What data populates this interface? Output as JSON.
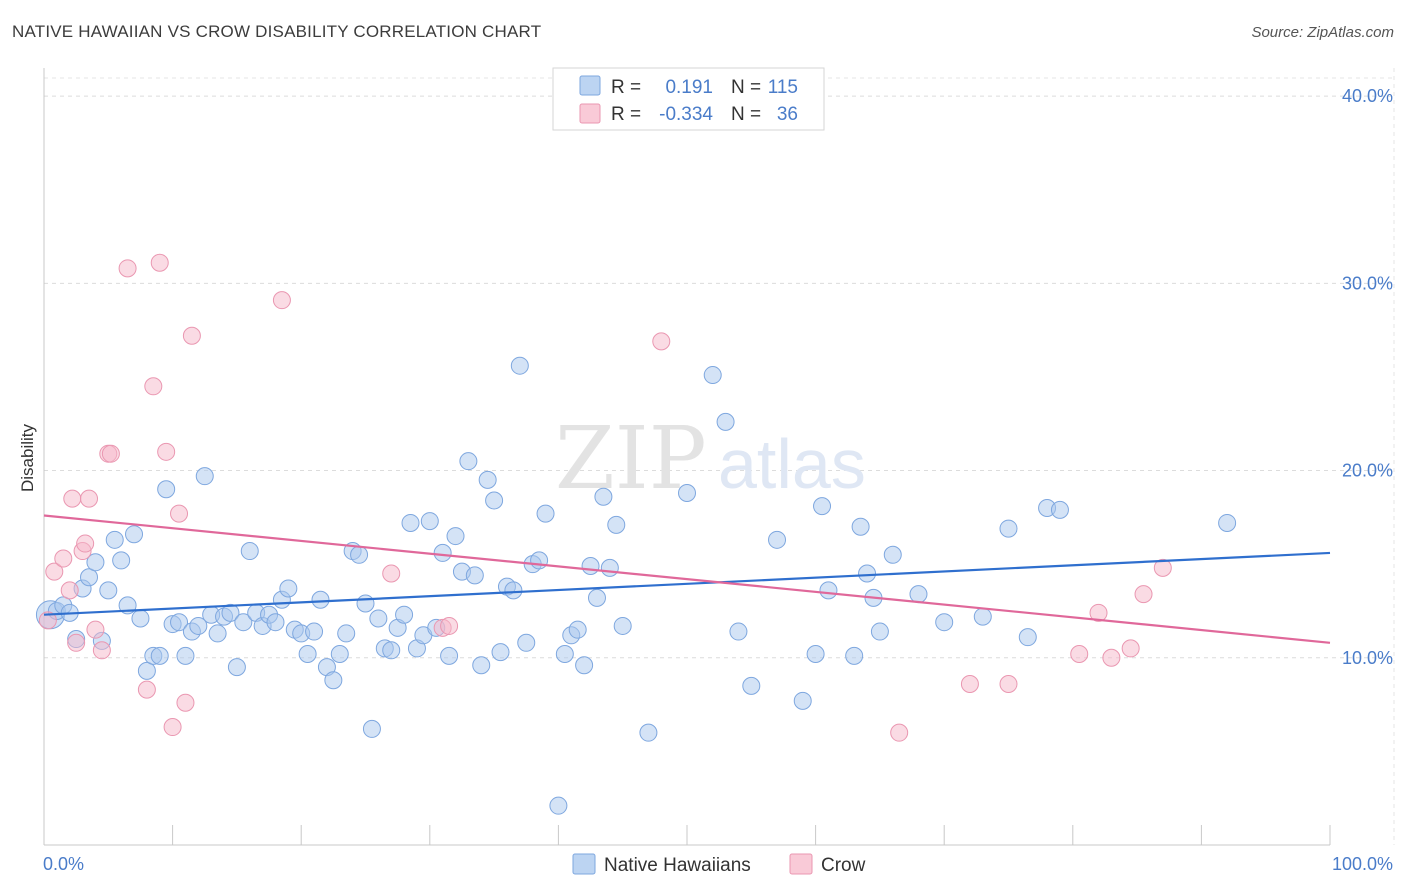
{
  "title": "NATIVE HAWAIIAN VS CROW DISABILITY CORRELATION CHART",
  "source": "Source: ZipAtlas.com",
  "watermark": {
    "part1": "ZIP",
    "part2": "atlas"
  },
  "colors": {
    "blue": "#a9c8ee",
    "blue_line": "#2f6fce",
    "pink": "#f5b7c9",
    "pink_line": "#e0689a",
    "tick_text": "#4a7cc9"
  },
  "stats_box": {
    "rows": [
      {
        "r_label": "R =",
        "r_value": "0.191",
        "n_label": "N =",
        "n_value": "115"
      },
      {
        "r_label": "R =",
        "r_value": "-0.334",
        "n_label": "N =",
        "n_value": "36"
      }
    ]
  },
  "chart_data": {
    "type": "scatter",
    "title": "NATIVE HAWAIIAN VS CROW DISABILITY CORRELATION CHART",
    "xlabel": "",
    "ylabel": "Disability",
    "xlim": [
      0,
      100
    ],
    "ylim": [
      0,
      41.5
    ],
    "x_tick_labels": [
      "0.0%",
      "100.0%"
    ],
    "y_ticks": [
      10,
      20,
      30,
      40
    ],
    "y_tick_labels": [
      "10.0%",
      "20.0%",
      "30.0%",
      "40.0%"
    ],
    "grid": true,
    "legend_position": "bottom",
    "series": [
      {
        "name": "Native Hawaiians",
        "trend": [
          [
            0,
            12.3
          ],
          [
            100,
            15.6
          ]
        ],
        "points": [
          [
            0.5,
            12.3
          ],
          [
            1,
            12.5
          ],
          [
            1.5,
            12.8
          ],
          [
            2,
            12.4
          ],
          [
            2.5,
            11
          ],
          [
            3,
            13.7
          ],
          [
            3.5,
            14.3
          ],
          [
            4,
            15.1
          ],
          [
            4.5,
            10.9
          ],
          [
            5,
            13.6
          ],
          [
            5.5,
            16.3
          ],
          [
            6,
            15.2
          ],
          [
            6.5,
            12.8
          ],
          [
            7,
            16.6
          ],
          [
            7.5,
            12.1
          ],
          [
            8,
            9.3
          ],
          [
            8.5,
            10.1
          ],
          [
            9,
            10.1
          ],
          [
            9.5,
            19
          ],
          [
            10,
            11.8
          ],
          [
            10.5,
            11.9
          ],
          [
            11,
            10.1
          ],
          [
            11.5,
            11.4
          ],
          [
            12,
            11.7
          ],
          [
            12.5,
            19.7
          ],
          [
            13,
            12.3
          ],
          [
            13.5,
            11.3
          ],
          [
            14,
            12.2
          ],
          [
            14.5,
            12.4
          ],
          [
            15,
            9.5
          ],
          [
            15.5,
            11.9
          ],
          [
            16,
            15.7
          ],
          [
            16.5,
            12.4
          ],
          [
            17,
            11.7
          ],
          [
            17.5,
            12.3
          ],
          [
            18,
            11.9
          ],
          [
            18.5,
            13.1
          ],
          [
            19,
            13.7
          ],
          [
            19.5,
            11.5
          ],
          [
            20,
            11.3
          ],
          [
            20.5,
            10.2
          ],
          [
            21,
            11.4
          ],
          [
            21.5,
            13.1
          ],
          [
            22,
            9.5
          ],
          [
            22.5,
            8.8
          ],
          [
            23,
            10.2
          ],
          [
            23.5,
            11.3
          ],
          [
            24,
            15.7
          ],
          [
            24.5,
            15.5
          ],
          [
            25,
            12.9
          ],
          [
            25.5,
            6.2
          ],
          [
            26,
            12.1
          ],
          [
            26.5,
            10.5
          ],
          [
            27,
            10.4
          ],
          [
            27.5,
            11.6
          ],
          [
            28,
            12.3
          ],
          [
            28.5,
            17.2
          ],
          [
            29,
            10.5
          ],
          [
            29.5,
            11.2
          ],
          [
            30,
            17.3
          ],
          [
            30.5,
            11.6
          ],
          [
            31,
            15.6
          ],
          [
            31.5,
            10.1
          ],
          [
            32,
            16.5
          ],
          [
            32.5,
            14.6
          ],
          [
            33,
            20.5
          ],
          [
            33.5,
            14.4
          ],
          [
            34,
            9.6
          ],
          [
            34.5,
            19.5
          ],
          [
            35,
            18.4
          ],
          [
            35.5,
            10.3
          ],
          [
            36,
            13.8
          ],
          [
            36.5,
            13.6
          ],
          [
            37,
            25.6
          ],
          [
            37.5,
            10.8
          ],
          [
            38,
            15
          ],
          [
            38.5,
            15.2
          ],
          [
            39,
            17.7
          ],
          [
            40,
            2.1
          ],
          [
            40.5,
            10.2
          ],
          [
            41,
            11.2
          ],
          [
            41.5,
            11.5
          ],
          [
            42,
            9.6
          ],
          [
            42.5,
            14.9
          ],
          [
            43,
            13.2
          ],
          [
            43.5,
            18.6
          ],
          [
            44,
            14.8
          ],
          [
            44.5,
            17.1
          ],
          [
            45,
            11.7
          ],
          [
            47,
            6
          ],
          [
            50,
            18.8
          ],
          [
            52,
            25.1
          ],
          [
            53,
            22.6
          ],
          [
            54,
            11.4
          ],
          [
            55,
            8.5
          ],
          [
            57,
            16.3
          ],
          [
            59,
            7.7
          ],
          [
            60,
            10.2
          ],
          [
            60.5,
            18.1
          ],
          [
            61,
            13.6
          ],
          [
            63,
            10.1
          ],
          [
            63.5,
            17
          ],
          [
            64,
            14.5
          ],
          [
            64.5,
            13.2
          ],
          [
            65,
            11.4
          ],
          [
            66,
            15.5
          ],
          [
            68,
            13.4
          ],
          [
            70,
            11.9
          ],
          [
            73,
            12.2
          ],
          [
            75,
            16.9
          ],
          [
            76.5,
            11.1
          ],
          [
            78,
            18
          ],
          [
            79,
            17.9
          ],
          [
            92,
            17.2
          ]
        ]
      },
      {
        "name": "Crow",
        "trend": [
          [
            0,
            17.6
          ],
          [
            100,
            10.8
          ]
        ],
        "points": [
          [
            0.3,
            12
          ],
          [
            0.8,
            14.6
          ],
          [
            1.5,
            15.3
          ],
          [
            2,
            13.6
          ],
          [
            2.2,
            18.5
          ],
          [
            2.5,
            10.8
          ],
          [
            3,
            15.7
          ],
          [
            3.2,
            16.1
          ],
          [
            3.5,
            18.5
          ],
          [
            4,
            11.5
          ],
          [
            4.5,
            10.4
          ],
          [
            5,
            20.9
          ],
          [
            5.2,
            20.9
          ],
          [
            6.5,
            30.8
          ],
          [
            8,
            8.3
          ],
          [
            8.5,
            24.5
          ],
          [
            9,
            31.1
          ],
          [
            9.5,
            21
          ],
          [
            10,
            6.3
          ],
          [
            10.5,
            17.7
          ],
          [
            11,
            7.6
          ],
          [
            11.5,
            27.2
          ],
          [
            18.5,
            29.1
          ],
          [
            27,
            14.5
          ],
          [
            31,
            11.6
          ],
          [
            31.5,
            11.7
          ],
          [
            48,
            26.9
          ],
          [
            66.5,
            6
          ],
          [
            72,
            8.6
          ],
          [
            75,
            8.6
          ],
          [
            80.5,
            10.2
          ],
          [
            82,
            12.4
          ],
          [
            83,
            10
          ],
          [
            84.5,
            10.5
          ],
          [
            85.5,
            13.4
          ],
          [
            87,
            14.8
          ]
        ]
      }
    ]
  },
  "legend": {
    "items": [
      {
        "label": "Native Hawaiians"
      },
      {
        "label": "Crow"
      }
    ]
  }
}
